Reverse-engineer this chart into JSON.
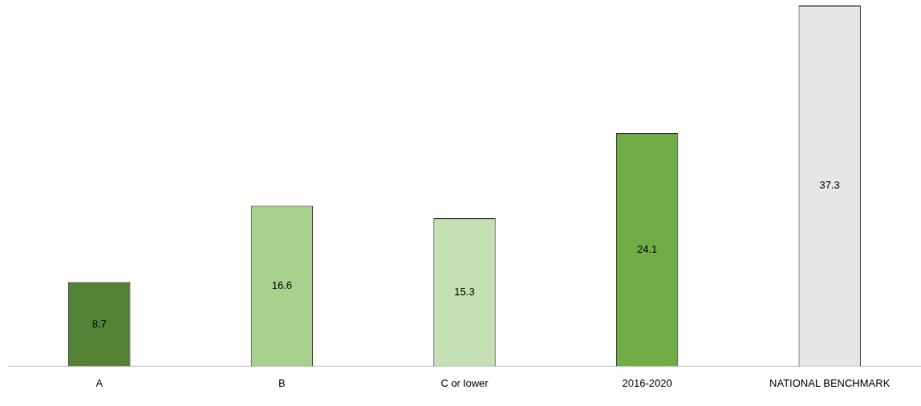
{
  "chart_data": {
    "type": "bar",
    "categories": [
      "A",
      "B",
      "C or lower",
      "2016-2020",
      "NATIONAL BENCHMARK"
    ],
    "values": [
      8.7,
      16.6,
      15.3,
      24.1,
      37.3
    ],
    "colors": [
      "#548235",
      "#a9d18e",
      "#c5e0b4",
      "#70ad47",
      "#e7e6e6"
    ],
    "data_labels": true,
    "grid": false,
    "legend": false,
    "tick_labels": "x"
  }
}
